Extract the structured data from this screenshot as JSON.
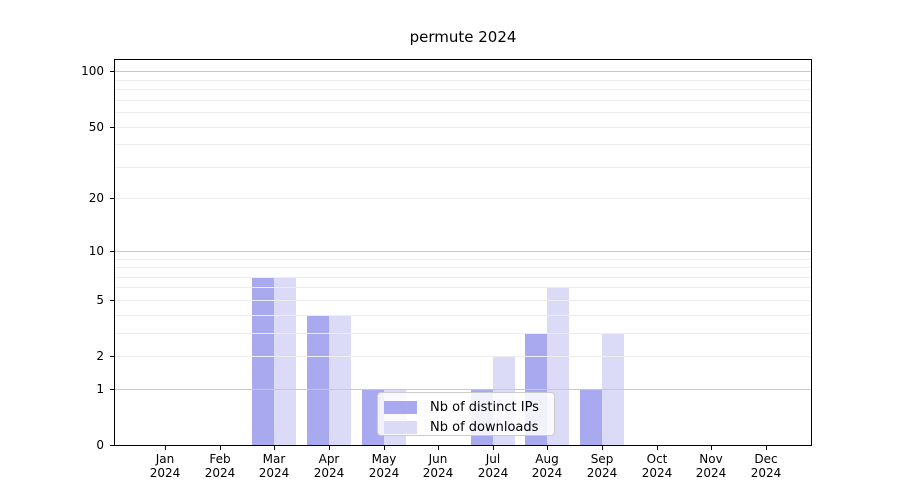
{
  "figure": {
    "background": "#ffffff",
    "axis_color": "#000000",
    "major_grid_color": "#c9c9c9",
    "minor_grid_color": "#ededed"
  },
  "chart_data": {
    "type": "bar",
    "title": "permute 2024",
    "categories": [
      {
        "label": "Jan",
        "sublabel": "2024"
      },
      {
        "label": "Feb",
        "sublabel": "2024"
      },
      {
        "label": "Mar",
        "sublabel": "2024"
      },
      {
        "label": "Apr",
        "sublabel": "2024"
      },
      {
        "label": "May",
        "sublabel": "2024"
      },
      {
        "label": "Jun",
        "sublabel": "2024"
      },
      {
        "label": "Jul",
        "sublabel": "2024"
      },
      {
        "label": "Aug",
        "sublabel": "2024"
      },
      {
        "label": "Sep",
        "sublabel": "2024"
      },
      {
        "label": "Oct",
        "sublabel": "2024"
      },
      {
        "label": "Nov",
        "sublabel": "2024"
      },
      {
        "label": "Dec",
        "sublabel": "2024"
      }
    ],
    "series": [
      {
        "name": "Nb of distinct IPs",
        "color": "#a9a9f0",
        "values": [
          0,
          0,
          7,
          4,
          1,
          0,
          1,
          3,
          1,
          0,
          0,
          0
        ]
      },
      {
        "name": "Nb of downloads",
        "color": "#dbdbf8",
        "values": [
          0,
          0,
          7,
          4,
          1,
          0,
          2,
          6,
          3,
          0,
          0,
          0
        ]
      }
    ],
    "xlabel": "",
    "ylabel": "",
    "scale": "log1p",
    "ylim": [
      0,
      115
    ],
    "y_ticks": [
      0,
      1,
      2,
      5,
      10,
      20,
      50,
      100
    ],
    "y_major_gridlines": [
      1,
      10,
      100
    ],
    "y_minor_gridlines": [
      2,
      3,
      4,
      5,
      6,
      7,
      8,
      9,
      20,
      30,
      40,
      50,
      60,
      70,
      80,
      90
    ],
    "grid": true,
    "legend_position": "lower center inside plot"
  }
}
